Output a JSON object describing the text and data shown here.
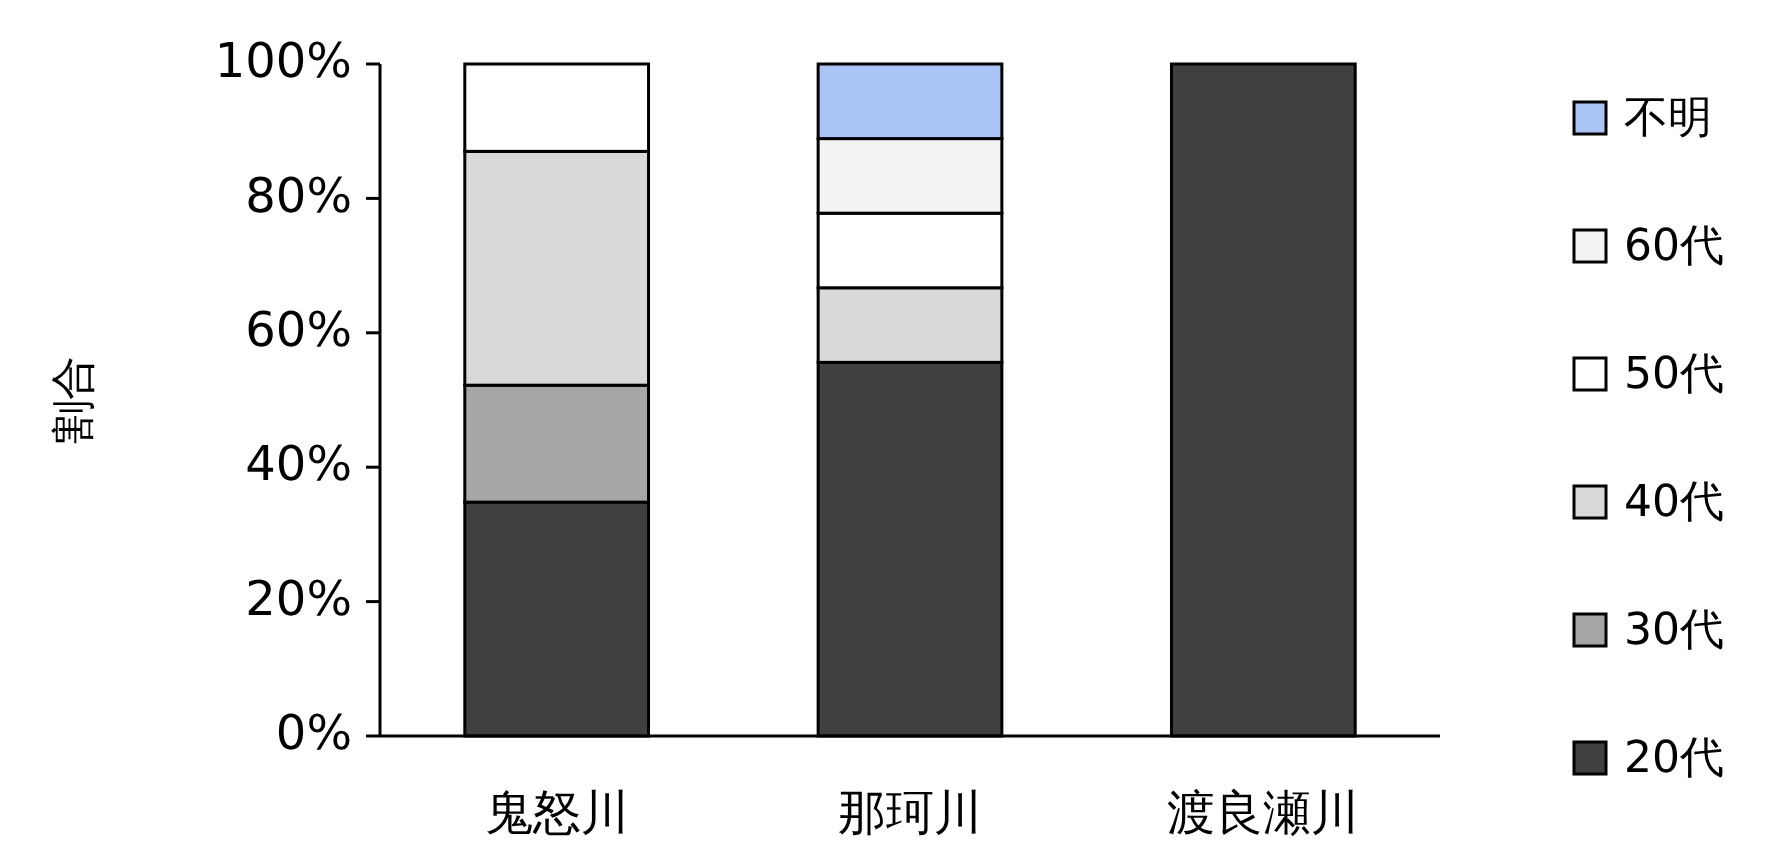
{
  "chart_data": {
    "type": "bar",
    "stacked": true,
    "ylabel": "割合",
    "categories": [
      "鬼怒川",
      "那珂川",
      "渡良瀬川"
    ],
    "series": [
      {
        "name": "20代",
        "color": "#404040",
        "values": [
          34.8,
          55.6,
          100
        ]
      },
      {
        "name": "30代",
        "color": "#a6a6a6",
        "values": [
          17.4,
          0,
          0
        ]
      },
      {
        "name": "40代",
        "color": "#d9d9d9",
        "values": [
          34.8,
          11.1,
          0
        ]
      },
      {
        "name": "50代",
        "color": "#ffffff",
        "values": [
          13.0,
          11.1,
          0
        ]
      },
      {
        "name": "60代",
        "color": "#f2f2f2",
        "values": [
          0,
          11.1,
          0
        ]
      },
      {
        "name": "不明",
        "color": "#a9c4f5",
        "values": [
          0,
          11.1,
          0
        ]
      }
    ],
    "ylim": [
      0,
      100
    ],
    "yticks": [
      {
        "value": 0,
        "label": "0%"
      },
      {
        "value": 20,
        "label": "20%"
      },
      {
        "value": 40,
        "label": "40%"
      },
      {
        "value": 60,
        "label": "60%"
      },
      {
        "value": 80,
        "label": "80%"
      },
      {
        "value": 100,
        "label": "100%"
      }
    ],
    "grid": false,
    "legend": "right"
  }
}
